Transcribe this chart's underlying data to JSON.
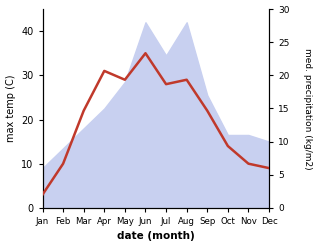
{
  "months": [
    "Jan",
    "Feb",
    "Mar",
    "Apr",
    "May",
    "Jun",
    "Jul",
    "Aug",
    "Sep",
    "Oct",
    "Nov",
    "Dec"
  ],
  "temperature": [
    3,
    10,
    22,
    31,
    29,
    35,
    28,
    29,
    22,
    14,
    10,
    9
  ],
  "precipitation": [
    6,
    9,
    12,
    15,
    19,
    28,
    23,
    28,
    17,
    11,
    11,
    10
  ],
  "temp_color": "#c0392b",
  "precip_fill_color": "#c8d0f0",
  "precip_edge_color": "#b0bce8",
  "xlabel": "date (month)",
  "ylabel_left": "max temp (C)",
  "ylabel_right": "med. precipitation (kg/m2)",
  "ylim_left": [
    0,
    45
  ],
  "ylim_right": [
    0,
    30
  ],
  "yticks_left": [
    0,
    10,
    20,
    30,
    40
  ],
  "yticks_right": [
    0,
    5,
    10,
    15,
    20,
    25,
    30
  ],
  "bg_color": "#ffffff",
  "line_width": 1.8
}
